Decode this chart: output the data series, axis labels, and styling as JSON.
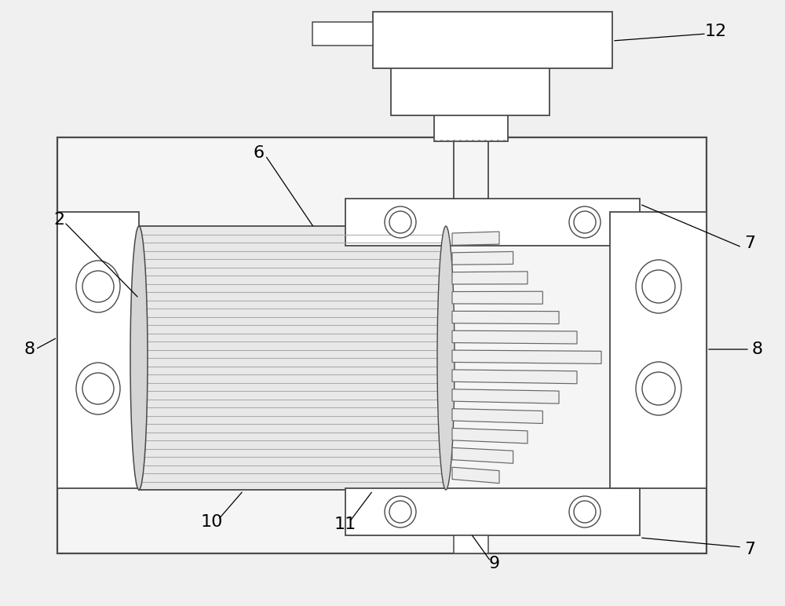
{
  "bg_color": "#f0f0f0",
  "line_color": "#4a4a4a",
  "white": "#ffffff",
  "light_fill": "#f8f8f8",
  "screw_fill": "#e8e8e8",
  "gear_fill": "#ebebeb",
  "stripe_color": "#999999"
}
